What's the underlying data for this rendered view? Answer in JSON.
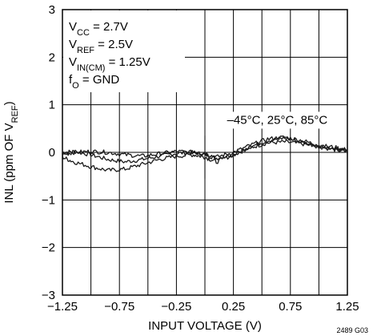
{
  "chart_data": {
    "type": "line",
    "xlabel": "INPUT VOLTAGE (V)",
    "ylabel": {
      "main": "INL (ppm OF V",
      "sub": "REF",
      "close": ")"
    },
    "xlim": [
      -1.25,
      1.25
    ],
    "ylim": [
      -3,
      3
    ],
    "x_ticks": [
      "-1.25",
      "-0.75",
      "-0.25",
      "0.25",
      "0.75",
      "1.25"
    ],
    "y_ticks": [
      "3",
      "2",
      "1",
      "0",
      "-1",
      "-2",
      "-3"
    ],
    "grid": true,
    "conditions": [
      {
        "main": "V",
        "sub": "CC",
        "rest": " = 2.7V"
      },
      {
        "main": "V",
        "sub": "REF",
        "rest": " = 2.5V"
      },
      {
        "main": "V",
        "sub": "IN(CM)",
        "rest": " = 1.25V"
      },
      {
        "main": "f",
        "sub": "O",
        "rest": " = GND"
      }
    ],
    "series_annotation": "–45°C, 25°C, 85°C",
    "figure_id": "2489 G03",
    "series": [
      {
        "x": [
          -1.25,
          -1.15,
          -1.0,
          -0.85,
          -0.7,
          -0.55,
          -0.4,
          -0.25,
          -0.1,
          0.0,
          0.1,
          0.25,
          0.4,
          0.55,
          0.7,
          0.85,
          1.0,
          1.15,
          1.25
        ],
        "values": [
          0.0,
          0.02,
          -0.05,
          -0.15,
          -0.2,
          -0.15,
          -0.08,
          -0.02,
          0.0,
          -0.05,
          -0.12,
          -0.05,
          0.1,
          0.2,
          0.22,
          0.18,
          0.12,
          0.08,
          0.05
        ]
      },
      {
        "x": [
          -1.25,
          -1.15,
          -1.0,
          -0.85,
          -0.7,
          -0.55,
          -0.4,
          -0.25,
          -0.1,
          0.0,
          0.1,
          0.25,
          0.4,
          0.55,
          0.7,
          0.85,
          1.0,
          1.15,
          1.25
        ],
        "values": [
          -0.1,
          -0.2,
          -0.3,
          -0.38,
          -0.35,
          -0.25,
          -0.15,
          -0.08,
          -0.05,
          -0.1,
          -0.2,
          -0.05,
          0.12,
          0.25,
          0.3,
          0.22,
          0.12,
          0.05,
          0.02
        ]
      },
      {
        "x": [
          -1.25,
          -1.15,
          -1.0,
          -0.85,
          -0.7,
          -0.55,
          -0.4,
          -0.25,
          -0.1,
          0.0,
          0.1,
          0.25,
          0.4,
          0.55,
          0.7,
          0.85,
          1.0,
          1.15,
          1.25
        ],
        "values": [
          -0.05,
          0.0,
          0.02,
          0.0,
          -0.05,
          -0.08,
          -0.03,
          0.02,
          0.0,
          -0.02,
          -0.1,
          0.0,
          0.15,
          0.28,
          0.32,
          0.25,
          0.15,
          0.1,
          0.05
        ]
      }
    ]
  }
}
